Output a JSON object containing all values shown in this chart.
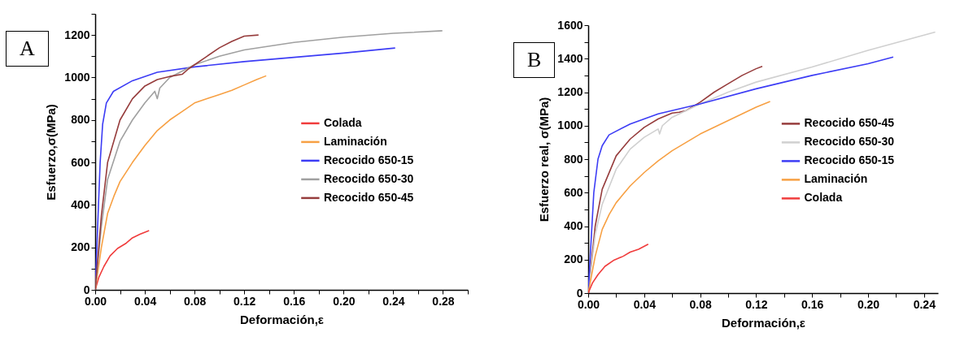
{
  "chart_data": [
    {
      "type": "line",
      "title": "A",
      "xlabel": "Deformación,ε",
      "ylabel": "Esfuerzo,σ(MPa)",
      "legend": "right",
      "grid": false,
      "marker": "none",
      "line_style": "solid",
      "xlim": [
        0,
        0.3
      ],
      "ylim": [
        0,
        1300
      ],
      "xticks": [
        {
          "value": 0,
          "label": "0.00"
        },
        {
          "value": 0.02,
          "label": null
        },
        {
          "value": 0.04,
          "label": "0.04"
        },
        {
          "value": 0.06,
          "label": null
        },
        {
          "value": 0.08,
          "label": "0.08"
        },
        {
          "value": 0.1,
          "label": null
        },
        {
          "value": 0.12,
          "label": "0.12"
        },
        {
          "value": 0.14,
          "label": null
        },
        {
          "value": 0.16,
          "label": "0.16"
        },
        {
          "value": 0.18,
          "label": null
        },
        {
          "value": 0.2,
          "label": "0.20"
        },
        {
          "value": 0.22,
          "label": null
        },
        {
          "value": 0.24,
          "label": "0.24"
        },
        {
          "value": 0.26,
          "label": null
        },
        {
          "value": 0.28,
          "label": "0.28"
        },
        {
          "value": 0.3,
          "label": null
        }
      ],
      "yticks": [
        0,
        {
          "value": 100,
          "label": null
        },
        200,
        {
          "value": 300,
          "label": null
        },
        400,
        {
          "value": 500,
          "label": null
        },
        600,
        {
          "value": 700,
          "label": null
        },
        800,
        {
          "value": 900,
          "label": null
        },
        1000,
        {
          "value": 1100,
          "label": null
        },
        1200,
        {
          "value": 1300,
          "label": null
        }
      ],
      "series": [
        {
          "name": "Colada",
          "color": "#f03c3c",
          "x": [
            0,
            0.003,
            0.007,
            0.012,
            0.018,
            0.025,
            0.03,
            0.036,
            0.0434
          ],
          "values": [
            0,
            60,
            110,
            160,
            195,
            220,
            245,
            262,
            279
          ]
        },
        {
          "name": "Laminación",
          "color": "#f7a043",
          "x": [
            0,
            0.005,
            0.01,
            0.015,
            0.02,
            0.03,
            0.04,
            0.05,
            0.06,
            0.07,
            0.08,
            0.09,
            0.1,
            0.11,
            0.12,
            0.13,
            0.1377
          ],
          "values": [
            0,
            200,
            360,
            440,
            510,
            600,
            680,
            750,
            800,
            840,
            880,
            900,
            920,
            940,
            965,
            990,
            1008
          ]
        },
        {
          "name": "Recocido 650-15",
          "color": "#3c3cf5",
          "x": [
            0,
            0.002,
            0.004,
            0.006,
            0.009,
            0.0147,
            0.03,
            0.05,
            0.08,
            0.12,
            0.16,
            0.2,
            0.2415
          ],
          "values": [
            0,
            300,
            600,
            780,
            880,
            935,
            985,
            1025,
            1050,
            1075,
            1095,
            1115,
            1139
          ]
        },
        {
          "name": "Recocido 650-30",
          "color": "#a0a0a0",
          "x": [
            0,
            0.005,
            0.01,
            0.02,
            0.03,
            0.04,
            0.048,
            0.05,
            0.052,
            0.06,
            0.08,
            0.1,
            0.12,
            0.16,
            0.2,
            0.24,
            0.2795
          ],
          "values": [
            0,
            300,
            520,
            700,
            800,
            880,
            935,
            900,
            950,
            1000,
            1060,
            1100,
            1130,
            1165,
            1190,
            1208,
            1220
          ]
        },
        {
          "name": "Recocido 650-45",
          "color": "#963c3c",
          "x": [
            0,
            0.005,
            0.01,
            0.02,
            0.03,
            0.04,
            0.05,
            0.06,
            0.07,
            0.075,
            0.08,
            0.09,
            0.1,
            0.11,
            0.12,
            0.1315
          ],
          "values": [
            0,
            350,
            600,
            800,
            900,
            960,
            990,
            1005,
            1015,
            1040,
            1060,
            1100,
            1140,
            1170,
            1195,
            1200
          ]
        }
      ]
    },
    {
      "type": "line",
      "title": "B",
      "xlabel": "Deformación,ε",
      "ylabel": "Esfuerzo real, σ(MPa)",
      "legend": "right",
      "grid": false,
      "marker": "none",
      "line_style": "solid",
      "xlim": [
        0,
        0.25
      ],
      "ylim": [
        0,
        1600
      ],
      "xticks": [
        {
          "value": 0,
          "label": "0.00"
        },
        {
          "value": 0.02,
          "label": null
        },
        {
          "value": 0.04,
          "label": "0.04"
        },
        {
          "value": 0.06,
          "label": null
        },
        {
          "value": 0.08,
          "label": "0.08"
        },
        {
          "value": 0.1,
          "label": null
        },
        {
          "value": 0.12,
          "label": "0.12"
        },
        {
          "value": 0.14,
          "label": null
        },
        {
          "value": 0.16,
          "label": "0.16"
        },
        {
          "value": 0.18,
          "label": null
        },
        {
          "value": 0.2,
          "label": "0.20"
        },
        {
          "value": 0.22,
          "label": null
        },
        {
          "value": 0.24,
          "label": "0.24"
        }
      ],
      "yticks": [
        0,
        {
          "value": 100,
          "label": null
        },
        200,
        {
          "value": 300,
          "label": null
        },
        400,
        {
          "value": 500,
          "label": null
        },
        600,
        {
          "value": 700,
          "label": null
        },
        800,
        {
          "value": 900,
          "label": null
        },
        1000,
        {
          "value": 1100,
          "label": null
        },
        1200,
        {
          "value": 1300,
          "label": null
        },
        1400,
        {
          "value": 1500,
          "label": null
        },
        1600
      ],
      "series": [
        {
          "name": "Recocido 650-45",
          "color": "#963c3c",
          "x": [
            0,
            0.005,
            0.01,
            0.02,
            0.03,
            0.04,
            0.05,
            0.06,
            0.065,
            0.07,
            0.08,
            0.09,
            0.1,
            0.11,
            0.12,
            0.1244
          ],
          "values": [
            0,
            400,
            620,
            820,
            920,
            990,
            1040,
            1075,
            1080,
            1090,
            1140,
            1200,
            1250,
            1300,
            1340,
            1354
          ]
        },
        {
          "name": "Recocido 650-30",
          "color": "#d0d0d0",
          "x": [
            0,
            0.005,
            0.01,
            0.02,
            0.03,
            0.04,
            0.05,
            0.051,
            0.053,
            0.06,
            0.08,
            0.1,
            0.12,
            0.16,
            0.2,
            0.248
          ],
          "values": [
            0,
            350,
            530,
            740,
            860,
            930,
            980,
            950,
            1000,
            1050,
            1130,
            1200,
            1260,
            1350,
            1450,
            1559
          ]
        },
        {
          "name": "Recocido 650-15",
          "color": "#3c3cf5",
          "x": [
            0,
            0.002,
            0.004,
            0.007,
            0.01,
            0.0149,
            0.03,
            0.05,
            0.08,
            0.12,
            0.16,
            0.2,
            0.218
          ],
          "values": [
            0,
            300,
            600,
            800,
            880,
            945,
            1010,
            1070,
            1130,
            1220,
            1300,
            1370,
            1410
          ]
        },
        {
          "name": "Laminación",
          "color": "#f7a043",
          "x": [
            0,
            0.005,
            0.01,
            0.015,
            0.02,
            0.03,
            0.04,
            0.05,
            0.06,
            0.07,
            0.08,
            0.09,
            0.1,
            0.11,
            0.12,
            0.13
          ],
          "values": [
            0,
            220,
            380,
            470,
            540,
            640,
            720,
            790,
            850,
            900,
            950,
            990,
            1030,
            1070,
            1110,
            1144
          ]
        },
        {
          "name": "Colada",
          "color": "#f03c3c",
          "x": [
            0,
            0.003,
            0.007,
            0.012,
            0.018,
            0.025,
            0.03,
            0.036,
            0.0429
          ],
          "values": [
            0,
            60,
            110,
            160,
            195,
            220,
            245,
            262,
            292
          ]
        }
      ]
    }
  ]
}
